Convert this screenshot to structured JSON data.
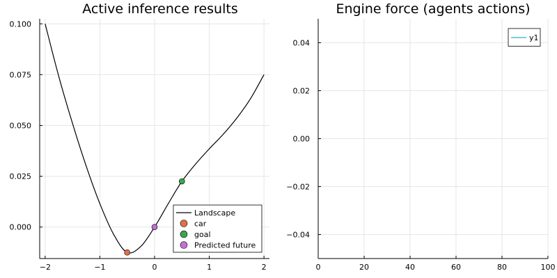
{
  "chart_data": [
    {
      "type": "line",
      "title": "Active inference results",
      "xlabel": "",
      "ylabel": "",
      "xlim": [
        -2.1,
        2.1
      ],
      "ylim": [
        -0.0155,
        0.1025
      ],
      "xticks": [
        -2,
        -1,
        0,
        1,
        2
      ],
      "xtick_labels": [
        "−2",
        "−1",
        "0",
        "1",
        "2"
      ],
      "yticks": [
        0.0,
        0.025,
        0.05,
        0.075,
        0.1
      ],
      "ytick_labels": [
        "0.000",
        "0.025",
        "0.050",
        "0.075",
        "0.100"
      ],
      "grid": true,
      "legend_position": "bottom-right",
      "series": [
        {
          "name": "Landscape",
          "kind": "line",
          "color": "#000000",
          "x": [
            -2.0,
            -1.75,
            -1.5,
            -1.25,
            -1.0,
            -0.75,
            -0.5,
            -0.25,
            0.0,
            0.25,
            0.5,
            0.75,
            1.0,
            1.25,
            1.5,
            1.75,
            2.0
          ],
          "y": [
            0.1,
            0.074,
            0.051,
            0.03,
            0.0115,
            -0.0035,
            -0.0125,
            -0.0095,
            0.0,
            0.0115,
            0.0225,
            0.031,
            0.0385,
            0.0455,
            0.0535,
            0.063,
            0.075
          ]
        },
        {
          "name": "car",
          "kind": "scatter",
          "color": "#e26f46",
          "x": [
            -0.5
          ],
          "y": [
            -0.0125
          ]
        },
        {
          "name": "goal",
          "kind": "scatter",
          "color": "#3da44d",
          "x": [
            0.5
          ],
          "y": [
            0.0225
          ]
        },
        {
          "name": "Predicted future",
          "kind": "scatter",
          "color": "#c271d2",
          "x": [
            0.0
          ],
          "y": [
            0.0
          ]
        }
      ]
    },
    {
      "type": "line",
      "title": "Engine force (agents actions)",
      "xlabel": "",
      "ylabel": "",
      "xlim": [
        0,
        100
      ],
      "ylim": [
        -0.05,
        0.05
      ],
      "xticks": [
        0,
        20,
        40,
        60,
        80,
        100
      ],
      "xtick_labels": [
        "0",
        "20",
        "40",
        "60",
        "80",
        "100"
      ],
      "yticks": [
        -0.04,
        -0.02,
        0.0,
        0.02,
        0.04
      ],
      "ytick_labels": [
        "−0.04",
        "−0.02",
        "0.00",
        "0.02",
        "0.04"
      ],
      "grid": true,
      "legend_position": "top-right",
      "series": [
        {
          "name": "y1",
          "kind": "line",
          "color": "#2ab3b3",
          "x": [],
          "y": []
        }
      ]
    }
  ]
}
